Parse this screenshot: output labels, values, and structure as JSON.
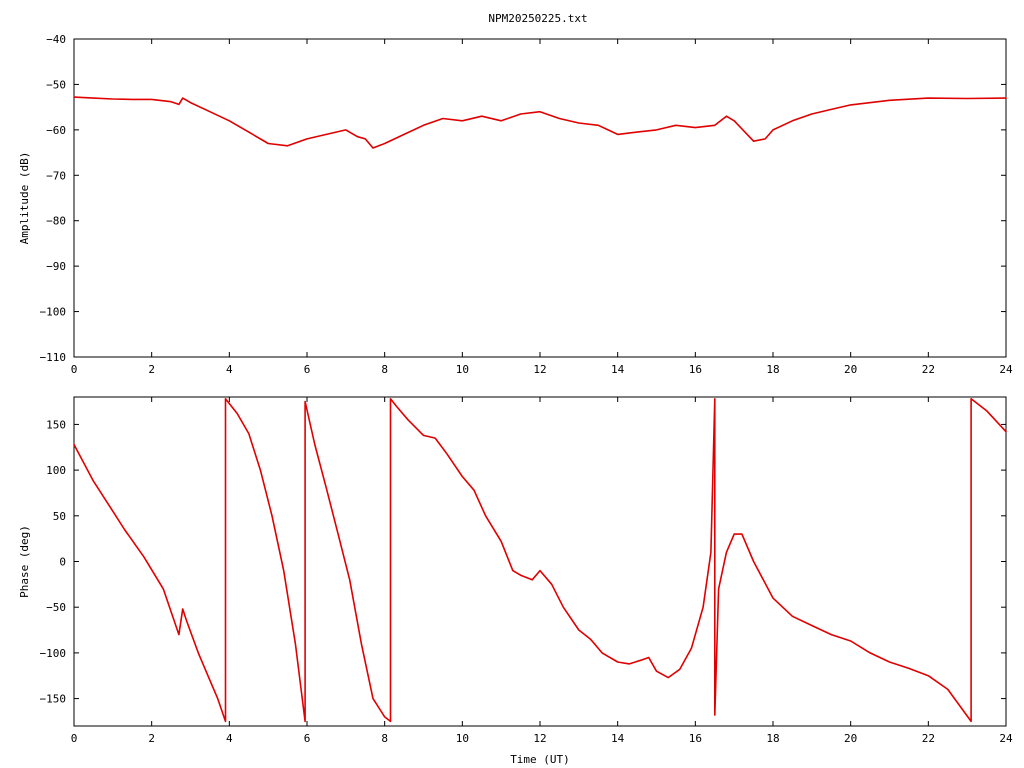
{
  "title": "NPM20250225.txt",
  "colors": {
    "series": "#e00000",
    "axes": "#000000",
    "background": "#ffffff"
  },
  "chart_data": [
    {
      "type": "line",
      "title": "NPM20250225.txt",
      "xlabel": "",
      "ylabel": "Amplitude (dB)",
      "xlim": [
        0,
        24
      ],
      "ylim": [
        -110,
        -40
      ],
      "xticks": [
        0,
        2,
        4,
        6,
        8,
        10,
        12,
        14,
        16,
        18,
        20,
        22,
        24
      ],
      "yticks": [
        -110,
        -100,
        -90,
        -80,
        -70,
        -60,
        -50,
        -40
      ],
      "xtick_labels": [
        "0",
        "2",
        "4",
        "6",
        "8",
        "10",
        "12",
        "14",
        "16",
        "18",
        "20",
        "22",
        "24"
      ],
      "ytick_labels": [
        "−110",
        "−100",
        "−90",
        "−80",
        "−70",
        "−60",
        "−50",
        "−40"
      ],
      "grid": false,
      "series": [
        {
          "x": [
            0,
            0.5,
            1,
            1.5,
            2,
            2.5,
            2.7,
            2.8,
            3.0,
            3.5,
            4.0,
            4.5,
            5.0,
            5.5,
            6.0,
            6.5,
            7.0,
            7.3,
            7.5,
            7.7,
            8.0,
            8.5,
            9.0,
            9.5,
            10.0,
            10.5,
            11.0,
            11.5,
            12.0,
            12.5,
            13.0,
            13.5,
            14.0,
            14.5,
            15.0,
            15.5,
            16.0,
            16.5,
            16.8,
            17.0,
            17.5,
            17.8,
            18.0,
            18.5,
            19.0,
            19.5,
            20.0,
            21.0,
            22.0,
            23.0,
            24.0
          ],
          "values": [
            -52.8,
            -53.0,
            -53.2,
            -53.3,
            -53.3,
            -53.8,
            -54.4,
            -53.0,
            -54.0,
            -56.0,
            -58.0,
            -60.5,
            -63.0,
            -63.5,
            -62.0,
            -61.0,
            -60.0,
            -61.5,
            -62.0,
            -64.0,
            -63.0,
            -61.0,
            -59.0,
            -57.5,
            -58.0,
            -57.0,
            -58.0,
            -56.5,
            -56.0,
            -57.5,
            -58.5,
            -59.0,
            -61.0,
            -60.5,
            -60.0,
            -59.0,
            -59.5,
            -59.0,
            -57.0,
            -58.0,
            -62.5,
            -62.0,
            -60.0,
            -58.0,
            -56.5,
            -55.5,
            -54.5,
            -53.5,
            -53.0,
            -53.1,
            -53.0
          ]
        }
      ]
    },
    {
      "type": "line",
      "title": "",
      "xlabel": "Time (UT)",
      "ylabel": "Phase (deg)",
      "xlim": [
        0,
        24
      ],
      "ylim": [
        -180,
        180
      ],
      "xticks": [
        0,
        2,
        4,
        6,
        8,
        10,
        12,
        14,
        16,
        18,
        20,
        22,
        24
      ],
      "yticks": [
        -150,
        -100,
        -50,
        0,
        50,
        100,
        150
      ],
      "xtick_labels": [
        "0",
        "2",
        "4",
        "6",
        "8",
        "10",
        "12",
        "14",
        "16",
        "18",
        "20",
        "22",
        "24"
      ],
      "ytick_labels": [
        "−150",
        "−100",
        "−50",
        "0",
        "50",
        "100",
        "150"
      ],
      "grid": false,
      "series": [
        {
          "x": [
            0,
            0.5,
            1.0,
            1.3,
            1.8,
            2.3,
            2.7,
            2.8,
            2.9,
            3.2,
            3.5,
            3.7,
            3.9,
            3.9,
            4.2,
            4.5,
            4.8,
            5.1,
            5.4,
            5.7,
            5.95,
            5.95,
            6.2,
            6.5,
            6.8,
            7.1,
            7.4,
            7.7,
            8.0,
            8.15,
            8.15,
            8.3,
            8.6,
            9.0,
            9.3,
            9.6,
            10.0,
            10.3,
            10.6,
            11.0,
            11.3,
            11.5,
            11.8,
            12.0,
            12.3,
            12.6,
            13.0,
            13.3,
            13.6,
            14.0,
            14.3,
            14.6,
            14.8,
            15.0,
            15.3,
            15.6,
            15.9,
            16.2,
            16.4,
            16.5,
            16.5,
            16.6,
            16.8,
            17.0,
            17.2,
            17.5,
            18.0,
            18.5,
            19.0,
            19.5,
            20.0,
            20.5,
            21.0,
            21.5,
            22.0,
            22.5,
            23.1,
            23.1,
            23.5,
            24.0
          ],
          "values": [
            128,
            88,
            55,
            35,
            5,
            -30,
            -80,
            -52,
            -65,
            -100,
            -130,
            -150,
            -175,
            178,
            162,
            140,
            100,
            50,
            -10,
            -90,
            -175,
            175,
            128,
            80,
            30,
            -20,
            -90,
            -150,
            -170,
            -175,
            178,
            170,
            155,
            138,
            135,
            118,
            93,
            78,
            50,
            22,
            -10,
            -15,
            -20,
            -10,
            -25,
            -50,
            -75,
            -85,
            -100,
            -110,
            -112,
            -108,
            -105,
            -120,
            -127,
            -118,
            -95,
            -50,
            10,
            178,
            -168,
            -30,
            10,
            30,
            30,
            0,
            -40,
            -60,
            -70,
            -80,
            -87,
            -100,
            -110,
            -117,
            -125,
            -140,
            -175,
            178,
            165,
            142
          ]
        }
      ]
    }
  ]
}
